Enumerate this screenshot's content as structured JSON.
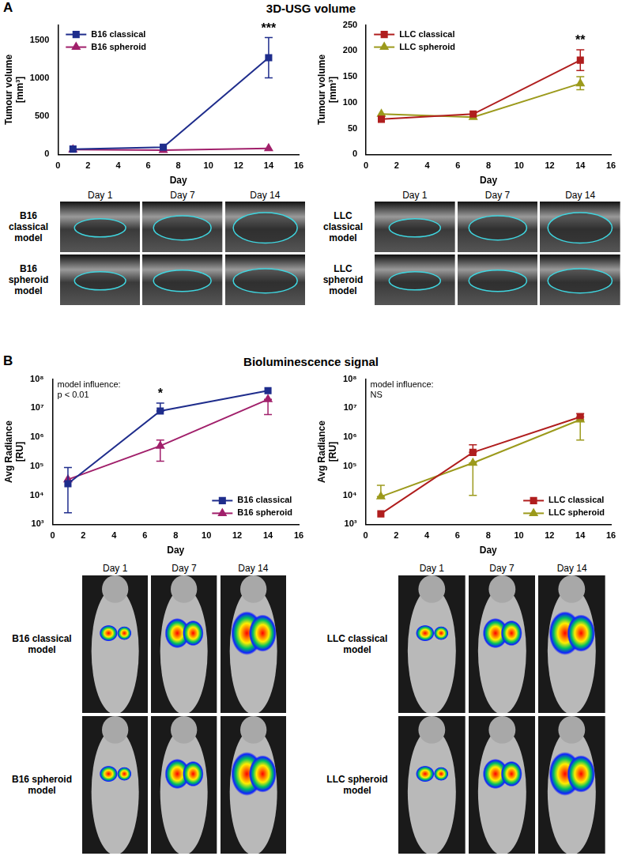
{
  "sections": [
    {
      "label": "A",
      "title": "3D-USG volume"
    },
    {
      "label": "B",
      "title": "Bioluminescence signal"
    }
  ],
  "chart_data": [
    {
      "type": "line",
      "x_label": "Day",
      "y_label": [
        "Tumour volume",
        "[mm³]"
      ],
      "x": [
        1,
        7,
        14
      ],
      "xlim": [
        0,
        16
      ],
      "xticks": [
        0,
        2,
        4,
        6,
        8,
        10,
        12,
        14,
        16
      ],
      "ylim": [
        0,
        1700
      ],
      "yticks": [
        0,
        500,
        1000,
        1500
      ],
      "grid": false,
      "legend": "upper left",
      "series": [
        {
          "name": "B16 classical",
          "color": "#1f2d8c",
          "marker": "square",
          "values": [
            70,
            95,
            1270
          ],
          "error_bars": [
            null,
            null,
            [
              1005,
              1535
            ]
          ]
        },
        {
          "name": "B16 spheroid",
          "color": "#a1206b",
          "marker": "triangle",
          "values": [
            65,
            55,
            80
          ],
          "error_bars": [
            null,
            null,
            null
          ]
        }
      ],
      "significance": [
        {
          "x": 14,
          "label": "***"
        }
      ]
    },
    {
      "type": "line",
      "x_label": "Day",
      "y_label": [
        "Tumour volume",
        "[mm³]"
      ],
      "x": [
        1,
        7,
        14
      ],
      "xlim": [
        0,
        16
      ],
      "xticks": [
        0,
        2,
        4,
        6,
        8,
        10,
        12,
        14,
        16
      ],
      "ylim": [
        0,
        250
      ],
      "yticks": [
        0,
        50,
        100,
        150,
        200,
        250
      ],
      "grid": false,
      "legend": "upper left",
      "series": [
        {
          "name": "LLC classical",
          "color": "#b01e1e",
          "marker": "square",
          "values": [
            68,
            78,
            182
          ],
          "error_bars": [
            null,
            null,
            [
              162,
              202
            ]
          ]
        },
        {
          "name": "LLC spheroid",
          "color": "#9c9a1c",
          "marker": "triangle",
          "values": [
            78,
            72,
            137
          ],
          "error_bars": [
            null,
            null,
            [
              125,
              150
            ]
          ]
        }
      ],
      "significance": [
        {
          "x": 14,
          "label": "**"
        }
      ]
    },
    {
      "type": "line",
      "x_label": "Day",
      "y_label": [
        "Avg Radiance",
        "[RU]"
      ],
      "log": "y",
      "x": [
        1,
        7,
        14
      ],
      "xlim": [
        0,
        16
      ],
      "xticks": [
        0,
        2,
        4,
        6,
        8,
        10,
        12,
        14,
        16
      ],
      "ylim": [
        1000,
        100000000
      ],
      "yticks": [
        {
          "value": 1000,
          "label": "10³"
        },
        {
          "value": 10000,
          "label": "10⁴"
        },
        {
          "value": 100000,
          "label": "10⁵"
        },
        {
          "value": 1000000,
          "label": "10⁶"
        },
        {
          "value": 10000000,
          "label": "10⁷"
        },
        {
          "value": 100000000,
          "label": "10⁸"
        }
      ],
      "grid": false,
      "legend": "lower right",
      "annotation": [
        "model influence:",
        "p < 0.01"
      ],
      "series": [
        {
          "name": "B16 classical",
          "color": "#1f2d8c",
          "marker": "square",
          "values": [
            25000,
            8000000,
            40000000
          ],
          "error_bars": [
            [
              2500,
              90000
            ],
            [
              8000000,
              15000000
            ],
            null
          ]
        },
        {
          "name": "B16 spheroid",
          "color": "#a1206b",
          "marker": "triangle",
          "values": [
            35000,
            500000,
            20000000
          ],
          "error_bars": [
            null,
            [
              150000,
              800000
            ],
            [
              6000000,
              20000000
            ]
          ]
        }
      ],
      "significance": [
        {
          "x": 7,
          "label": "*"
        }
      ]
    },
    {
      "type": "line",
      "x_label": "Day",
      "y_label": [
        "Avg Radiance",
        "[RU]"
      ],
      "log": "y",
      "x": [
        1,
        7,
        14
      ],
      "xlim": [
        0,
        16
      ],
      "xticks": [
        0,
        2,
        4,
        6,
        8,
        10,
        12,
        14,
        16
      ],
      "ylim": [
        1000,
        100000000
      ],
      "yticks": [
        {
          "value": 1000,
          "label": "10³"
        },
        {
          "value": 10000,
          "label": "10⁴"
        },
        {
          "value": 100000,
          "label": "10⁵"
        },
        {
          "value": 1000000,
          "label": "10⁶"
        },
        {
          "value": 10000000,
          "label": "10⁷"
        },
        {
          "value": 100000000,
          "label": "10⁸"
        }
      ],
      "grid": false,
      "legend": "lower right",
      "annotation": [
        "model influence:",
        "NS"
      ],
      "series": [
        {
          "name": "LLC classical",
          "color": "#b01e1e",
          "marker": "square",
          "values": [
            2300,
            300000,
            5000000
          ],
          "error_bars": [
            null,
            [
              300000,
              550000
            ],
            [
              5000000,
              6500000
            ]
          ]
        },
        {
          "name": "LLC spheroid",
          "color": "#9c9a1c",
          "marker": "triangle",
          "values": [
            9000,
            130000,
            4000000
          ],
          "error_bars": [
            [
              9000,
              22000
            ],
            [
              10000,
              130000
            ],
            [
              800000,
              4000000
            ]
          ]
        }
      ],
      "significance": []
    }
  ],
  "image_grids": [
    {
      "kind": "ultrasound",
      "columns": [
        "Day 1",
        "Day 7",
        "Day 14"
      ],
      "rows": [
        "B16 classical model",
        "B16 spheroid model"
      ]
    },
    {
      "kind": "ultrasound",
      "columns": [
        "Day 1",
        "Day 7",
        "Day 14"
      ],
      "rows": [
        "LLC classical model",
        "LLC spheroid model"
      ]
    },
    {
      "kind": "bioluminescence",
      "columns": [
        "Day 1",
        "Day 7",
        "Day 14"
      ],
      "rows": [
        "B16 classical model",
        "B16 spheroid model"
      ]
    },
    {
      "kind": "bioluminescence",
      "columns": [
        "Day 1",
        "Day 7",
        "Day 14"
      ],
      "rows": [
        "LLC classical model",
        "LLC spheroid model"
      ]
    }
  ]
}
